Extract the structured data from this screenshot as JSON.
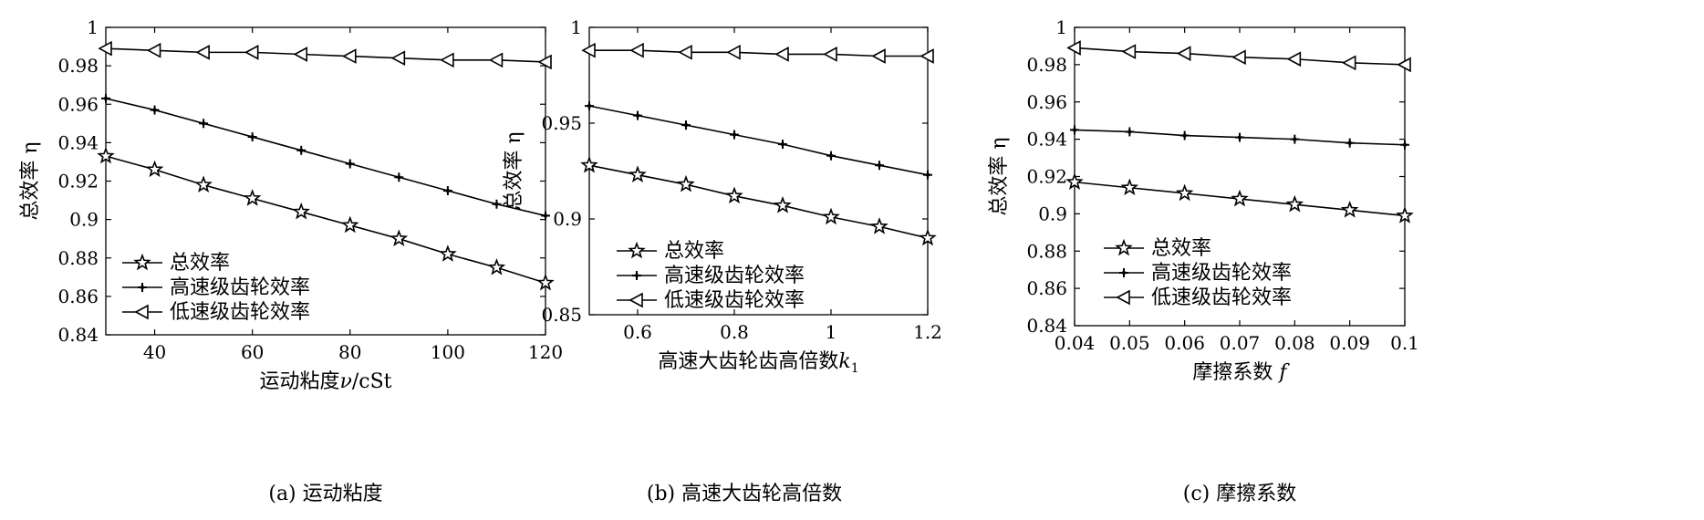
{
  "charts": [
    {
      "type": "line",
      "caption": "(a) 运动粘度",
      "xlabel_parts": [
        {
          "t": "运动粘度",
          "style": "normal"
        },
        {
          "t": "ν",
          "style": "italic"
        },
        {
          "t": "/cSt",
          "style": "normal"
        }
      ],
      "ylabel": "总效率 η",
      "xlim": [
        30,
        120
      ],
      "ylim": [
        0.84,
        1.0
      ],
      "xticks": [
        40,
        60,
        80,
        100,
        120
      ],
      "xtick_labels": [
        "40",
        "60",
        "80",
        "100",
        "120"
      ],
      "yticks": [
        0.84,
        0.86,
        0.88,
        0.9,
        0.92,
        0.94,
        0.96,
        0.98,
        1.0
      ],
      "ytick_labels": [
        "0.84",
        "0.86",
        "0.88",
        "0.9",
        "0.92",
        "0.94",
        "0.96",
        "0.98",
        "1"
      ],
      "legend_position": "bottom-left",
      "grid": false,
      "x": [
        30,
        40,
        50,
        60,
        70,
        80,
        90,
        100,
        110,
        120
      ],
      "series": [
        {
          "name": "总效率",
          "marker": "star",
          "values": [
            0.933,
            0.926,
            0.918,
            0.911,
            0.904,
            0.897,
            0.89,
            0.882,
            0.875,
            0.867
          ]
        },
        {
          "name": "高速级齿轮效率",
          "marker": "plus",
          "values": [
            0.963,
            0.957,
            0.95,
            0.943,
            0.936,
            0.929,
            0.922,
            0.915,
            0.908,
            0.902
          ]
        },
        {
          "name": "低速级齿轮效率",
          "marker": "triangle-left",
          "values": [
            0.989,
            0.988,
            0.987,
            0.987,
            0.986,
            0.985,
            0.984,
            0.983,
            0.983,
            0.982
          ]
        }
      ]
    },
    {
      "type": "line",
      "caption": "(b) 高速大齿轮高倍数",
      "xlabel_parts": [
        {
          "t": "高速大齿轮齿高倍数",
          "style": "normal"
        },
        {
          "t": "k",
          "style": "italic"
        },
        {
          "t": "1",
          "style": "sub"
        }
      ],
      "ylabel": "总效率 η",
      "xlim": [
        0.5,
        1.2
      ],
      "ylim": [
        0.85,
        1.0
      ],
      "xticks": [
        0.6,
        0.8,
        1.0,
        1.2
      ],
      "xtick_labels": [
        "0.6",
        "0.8",
        "1",
        "1.2"
      ],
      "yticks": [
        0.85,
        0.9,
        0.95,
        1.0
      ],
      "ytick_labels": [
        "0.85",
        "0.9",
        "0.95",
        "1"
      ],
      "legend_position": "bottom-left",
      "grid": false,
      "x": [
        0.5,
        0.6,
        0.7,
        0.8,
        0.9,
        1.0,
        1.1,
        1.2
      ],
      "series": [
        {
          "name": "总效率",
          "marker": "star",
          "values": [
            0.928,
            0.923,
            0.918,
            0.912,
            0.907,
            0.901,
            0.896,
            0.89
          ]
        },
        {
          "name": "高速级齿轮效率",
          "marker": "plus",
          "values": [
            0.959,
            0.954,
            0.949,
            0.944,
            0.939,
            0.933,
            0.928,
            0.923
          ]
        },
        {
          "name": "低速级齿轮效率",
          "marker": "triangle-left",
          "values": [
            0.988,
            0.988,
            0.987,
            0.987,
            0.986,
            0.986,
            0.985,
            0.985
          ]
        }
      ]
    },
    {
      "type": "line",
      "caption": "(c) 摩擦系数",
      "xlabel_parts": [
        {
          "t": "摩擦系数 ",
          "style": "normal"
        },
        {
          "t": "f",
          "style": "italic"
        }
      ],
      "ylabel": "总效率 η",
      "xlim": [
        0.04,
        0.1
      ],
      "ylim": [
        0.84,
        1.0
      ],
      "xticks": [
        0.04,
        0.05,
        0.06,
        0.07,
        0.08,
        0.09,
        0.1
      ],
      "xtick_labels": [
        "0.04",
        "0.05",
        "0.06",
        "0.07",
        "0.08",
        "0.09",
        "0.1"
      ],
      "yticks": [
        0.84,
        0.86,
        0.88,
        0.9,
        0.92,
        0.94,
        0.96,
        0.98,
        1.0
      ],
      "ytick_labels": [
        "0.84",
        "0.86",
        "0.88",
        "0.9",
        "0.92",
        "0.94",
        "0.96",
        "0.98",
        "1"
      ],
      "legend_position": "bottom-left",
      "grid": false,
      "x": [
        0.04,
        0.05,
        0.06,
        0.07,
        0.08,
        0.09,
        0.1
      ],
      "series": [
        {
          "name": "总效率",
          "marker": "star",
          "values": [
            0.917,
            0.914,
            0.911,
            0.908,
            0.905,
            0.902,
            0.899
          ]
        },
        {
          "name": "高速级齿轮效率",
          "marker": "plus",
          "values": [
            0.945,
            0.944,
            0.942,
            0.941,
            0.94,
            0.938,
            0.937
          ]
        },
        {
          "name": "低速级齿轮效率",
          "marker": "triangle-left",
          "values": [
            0.989,
            0.987,
            0.986,
            0.984,
            0.983,
            0.981,
            0.98
          ]
        }
      ]
    }
  ]
}
